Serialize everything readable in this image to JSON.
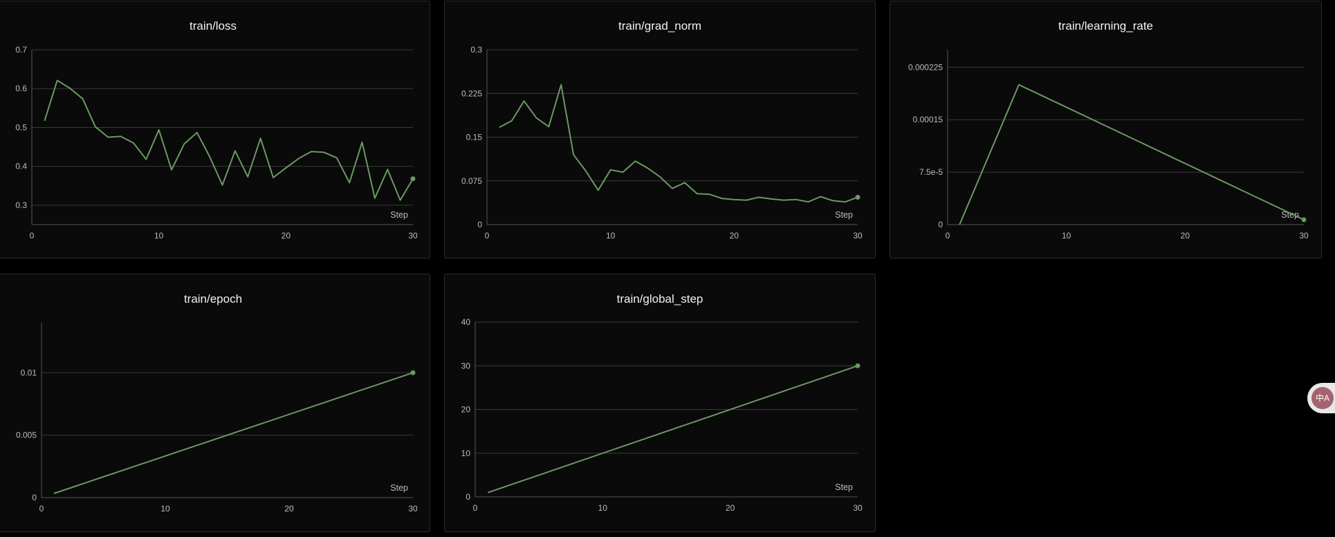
{
  "accent_color": "#6a9a62",
  "x_axis_label": "Step",
  "chart_data": [
    {
      "type": "line",
      "title": "train/loss",
      "xlabel": "Step",
      "xlim": [
        0,
        30
      ],
      "ylim": [
        0.25,
        0.7
      ],
      "x_ticks": [
        0,
        10,
        20,
        30
      ],
      "y_ticks": [
        0.3,
        0.4,
        0.5,
        0.6,
        0.7
      ],
      "y_tick_labels": [
        "0.3",
        "0.4",
        "0.5",
        "0.6",
        "0.7"
      ],
      "x": [
        1,
        2,
        3,
        4,
        5,
        6,
        7,
        8,
        9,
        10,
        11,
        12,
        13,
        14,
        15,
        16,
        17,
        18,
        19,
        20,
        21,
        22,
        23,
        24,
        25,
        26,
        27,
        28,
        29,
        30
      ],
      "y": [
        0.517,
        0.621,
        0.601,
        0.574,
        0.502,
        0.475,
        0.477,
        0.46,
        0.418,
        0.494,
        0.391,
        0.458,
        0.487,
        0.425,
        0.352,
        0.44,
        0.373,
        0.472,
        0.371,
        0.396,
        0.42,
        0.438,
        0.436,
        0.422,
        0.358,
        0.462,
        0.318,
        0.392,
        0.313,
        0.368
      ]
    },
    {
      "type": "line",
      "title": "train/grad_norm",
      "xlabel": "Step",
      "xlim": [
        0,
        30
      ],
      "ylim": [
        0,
        0.3
      ],
      "x_ticks": [
        0,
        10,
        20,
        30
      ],
      "y_ticks": [
        0,
        0.075,
        0.15,
        0.225,
        0.3
      ],
      "y_tick_labels": [
        "0",
        "0.075",
        "0.15",
        "0.225",
        "0.3"
      ],
      "x": [
        1,
        2,
        3,
        4,
        5,
        6,
        7,
        8,
        9,
        10,
        11,
        12,
        13,
        14,
        15,
        16,
        17,
        18,
        19,
        20,
        21,
        22,
        23,
        24,
        25,
        26,
        27,
        28,
        29,
        30
      ],
      "y": [
        0.167,
        0.178,
        0.212,
        0.183,
        0.168,
        0.24,
        0.12,
        0.092,
        0.059,
        0.094,
        0.09,
        0.109,
        0.097,
        0.082,
        0.062,
        0.072,
        0.053,
        0.052,
        0.045,
        0.043,
        0.042,
        0.047,
        0.044,
        0.042,
        0.043,
        0.039,
        0.048,
        0.041,
        0.039,
        0.047
      ]
    },
    {
      "type": "line",
      "title": "train/learning_rate",
      "xlabel": "Step",
      "xlim": [
        0,
        30
      ],
      "ylim": [
        0,
        0.00025
      ],
      "x_ticks": [
        0,
        10,
        20,
        30
      ],
      "y_ticks": [
        0,
        7.5e-05,
        0.00015,
        0.000225
      ],
      "y_tick_labels": [
        "0",
        "7.5e-5",
        "0.00015",
        "0.000225"
      ],
      "x": [
        1,
        6,
        30
      ],
      "y": [
        0,
        0.0002,
        7e-06
      ]
    },
    {
      "type": "line",
      "title": "train/epoch",
      "xlabel": "Step",
      "xlim": [
        0,
        30
      ],
      "ylim": [
        0,
        0.014
      ],
      "x_ticks": [
        0,
        10,
        20,
        30
      ],
      "y_ticks": [
        0,
        0.005,
        0.01
      ],
      "y_tick_labels": [
        "0",
        "0.005",
        "0.01"
      ],
      "x": [
        1,
        30
      ],
      "y": [
        0.00033,
        0.01
      ]
    },
    {
      "type": "line",
      "title": "train/global_step",
      "xlabel": "Step",
      "xlim": [
        0,
        30
      ],
      "ylim": [
        0,
        40
      ],
      "x_ticks": [
        0,
        10,
        20,
        30
      ],
      "y_ticks": [
        0,
        10,
        20,
        30,
        40
      ],
      "y_tick_labels": [
        "0",
        "10",
        "20",
        "30",
        "40"
      ],
      "x": [
        1,
        30
      ],
      "y": [
        1,
        30
      ]
    }
  ],
  "translate_button": {
    "label": "中A",
    "icon": "translate-icon"
  }
}
